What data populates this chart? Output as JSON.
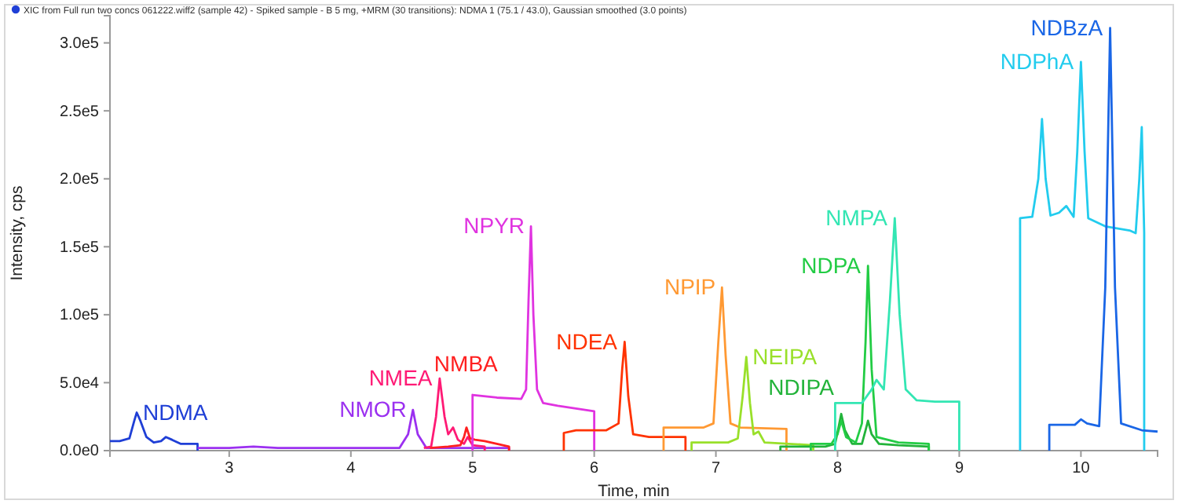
{
  "chart_data": {
    "type": "line",
    "title": "XIC from Full run two concs 061222.wiff2 (sample 42) - Spiked sample - B 5 mg, +MRM (30 transitions): NDMA 1 (75.1 / 43.0), Gaussian smoothed (3.0 points)",
    "xlabel": "Time, min",
    "ylabel": "Intensity, cps",
    "xlim": [
      2.02,
      10.63
    ],
    "ylim": [
      0,
      320000
    ],
    "xticks": [
      3,
      4,
      5,
      6,
      7,
      8,
      9,
      10
    ],
    "yticks": [
      {
        "value": 0,
        "label": "0.0e0"
      },
      {
        "value": 50000,
        "label": "5.0e4"
      },
      {
        "value": 100000,
        "label": "1.0e5"
      },
      {
        "value": 150000,
        "label": "1.5e5"
      },
      {
        "value": 200000,
        "label": "2.0e5"
      },
      {
        "value": 250000,
        "label": "2.5e5"
      },
      {
        "value": 300000,
        "label": "3.0e5"
      }
    ],
    "grid": false,
    "marker": "none",
    "line_style": "solid",
    "series": [
      {
        "name": "NDMA",
        "color": "#1f3fd6",
        "x": [
          2.02,
          2.1,
          2.18,
          2.22,
          2.24,
          2.27,
          2.32,
          2.38,
          2.44,
          2.48,
          2.53,
          2.6,
          2.74,
          2.74
        ],
        "values": [
          7000,
          7000,
          9000,
          22000,
          28000,
          22000,
          10000,
          6000,
          7000,
          10000,
          8000,
          5000,
          5000,
          0
        ]
      },
      {
        "name": "NMOR",
        "color": "#9b30f0",
        "x": [
          2.74,
          3.0,
          3.2,
          3.4,
          4.0,
          4.4,
          4.47,
          4.51,
          4.55,
          4.62,
          4.8,
          5.3,
          5.3
        ],
        "values": [
          2000,
          2000,
          3000,
          2000,
          2000,
          2000,
          12000,
          30000,
          12000,
          2000,
          2000,
          2000,
          0
        ]
      },
      {
        "name": "NMEA",
        "color": "#ff1a75",
        "x": [
          4.6,
          4.66,
          4.7,
          4.73,
          4.77,
          4.8,
          4.84,
          4.88,
          4.93,
          4.96,
          5.0,
          5.1,
          5.1
        ],
        "values": [
          2000,
          3000,
          25000,
          53000,
          25000,
          12000,
          17000,
          8000,
          5000,
          10000,
          4000,
          3000,
          0
        ]
      },
      {
        "name": "NMBA",
        "color": "#ff2020",
        "x": [
          4.65,
          4.8,
          4.9,
          4.93,
          4.95,
          4.98,
          5.02,
          5.1,
          5.2,
          5.3,
          5.3
        ],
        "values": [
          2000,
          3000,
          4000,
          10000,
          17000,
          9000,
          8000,
          7000,
          5000,
          3000,
          0
        ]
      },
      {
        "name": "NPYR",
        "color": "#e033e0",
        "x": [
          5.0,
          5.0,
          5.2,
          5.4,
          5.44,
          5.46,
          5.48,
          5.5,
          5.53,
          5.58,
          5.7,
          5.85,
          6.0,
          6.0
        ],
        "values": [
          0,
          41000,
          39000,
          38000,
          45000,
          110000,
          165000,
          100000,
          45000,
          35000,
          33000,
          31000,
          29000,
          0
        ]
      },
      {
        "name": "NDEA",
        "color": "#ff3300",
        "x": [
          5.75,
          5.75,
          5.85,
          6.1,
          6.2,
          6.23,
          6.25,
          6.28,
          6.32,
          6.45,
          6.75,
          6.75
        ],
        "values": [
          0,
          13000,
          15000,
          15000,
          20000,
          60000,
          80000,
          40000,
          12000,
          10000,
          10000,
          0
        ]
      },
      {
        "name": "NPIP",
        "color": "#ff9933",
        "x": [
          6.57,
          6.57,
          6.9,
          6.98,
          7.02,
          7.05,
          7.08,
          7.12,
          7.2,
          7.58,
          7.58
        ],
        "values": [
          0,
          17000,
          17000,
          20000,
          80000,
          120000,
          70000,
          20000,
          17000,
          16000,
          0
        ]
      },
      {
        "name": "NEIPA",
        "color": "#99e02a",
        "x": [
          6.8,
          6.8,
          7.1,
          7.18,
          7.22,
          7.25,
          7.28,
          7.31,
          7.35,
          7.4,
          7.6,
          7.8,
          7.8
        ],
        "values": [
          0,
          6000,
          6000,
          9000,
          40000,
          69000,
          35000,
          12000,
          14000,
          6000,
          5000,
          4000,
          0
        ]
      },
      {
        "name": "NDIPA",
        "color": "#22b33a",
        "x": [
          7.53,
          7.53,
          7.9,
          7.98,
          8.01,
          8.03,
          8.06,
          8.12,
          8.2,
          8.23,
          8.25,
          8.28,
          8.34,
          8.5,
          8.75,
          8.75
        ],
        "values": [
          0,
          3000,
          3000,
          5000,
          18000,
          27000,
          15000,
          5000,
          5000,
          15000,
          22000,
          12000,
          5000,
          4000,
          3000,
          0
        ]
      },
      {
        "name": "NDPA",
        "color": "#22cc44",
        "x": [
          7.78,
          7.78,
          7.95,
          8.0,
          8.03,
          8.07,
          8.15,
          8.2,
          8.23,
          8.25,
          8.28,
          8.32,
          8.5,
          8.75,
          8.75
        ],
        "values": [
          0,
          5000,
          5000,
          12000,
          22000,
          10000,
          6000,
          20000,
          80000,
          136000,
          60000,
          10000,
          6000,
          5000,
          0
        ]
      },
      {
        "name": "NMPA",
        "color": "#33e6b3",
        "x": [
          7.98,
          7.98,
          8.2,
          8.28,
          8.32,
          8.38,
          8.43,
          8.47,
          8.51,
          8.56,
          8.65,
          8.8,
          9.0,
          9.0
        ],
        "values": [
          0,
          35000,
          35000,
          45000,
          52000,
          45000,
          110000,
          171000,
          100000,
          45000,
          37000,
          36000,
          36000,
          0
        ]
      },
      {
        "name": "NDPhA",
        "color": "#22ccee",
        "x": [
          9.5,
          9.5,
          9.6,
          9.65,
          9.68,
          9.71,
          9.75,
          9.82,
          9.88,
          9.94,
          9.97,
          10.0,
          10.03,
          10.06,
          10.2,
          10.4,
          10.45,
          10.48,
          10.5,
          10.52,
          10.52
        ],
        "values": [
          0,
          171000,
          172000,
          200000,
          244000,
          200000,
          173000,
          175000,
          180000,
          172000,
          220000,
          286000,
          220000,
          171000,
          165000,
          162000,
          160000,
          200000,
          238000,
          160000,
          0
        ]
      },
      {
        "name": "NDBzA",
        "color": "#1a66e6",
        "x": [
          9.74,
          9.74,
          9.95,
          10.0,
          10.05,
          10.15,
          10.2,
          10.24,
          10.28,
          10.33,
          10.5,
          10.63
        ],
        "values": [
          0,
          19000,
          19000,
          23000,
          20000,
          18000,
          120000,
          311000,
          120000,
          20000,
          15000,
          14000
        ]
      }
    ]
  }
}
